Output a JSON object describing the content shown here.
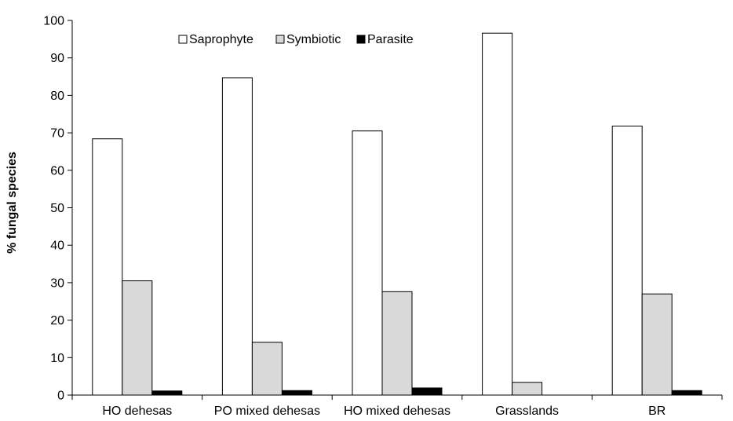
{
  "chart_data": {
    "type": "bar",
    "categories": [
      "HO dehesas",
      "PO mixed dehesas",
      "HO mixed dehesas",
      "Grasslands",
      "BR"
    ],
    "series": [
      {
        "name": "Saprophyte",
        "values": [
          68.4,
          84.7,
          70.5,
          96.6,
          71.8
        ],
        "color": "#ffffff"
      },
      {
        "name": "Symbiotic",
        "values": [
          30.5,
          14.1,
          27.6,
          3.4,
          27.0
        ],
        "color": "#d9d9d9"
      },
      {
        "name": "Parasite",
        "values": [
          1.1,
          1.2,
          1.9,
          0.0,
          1.2
        ],
        "color": "#000000"
      }
    ],
    "ylabel": "% fungal species",
    "xlabel": "",
    "ylim": [
      0,
      100
    ],
    "yticks": [
      0,
      10,
      20,
      30,
      40,
      50,
      60,
      70,
      80,
      90,
      100
    ],
    "grid": false,
    "legend_position": "top-center"
  }
}
